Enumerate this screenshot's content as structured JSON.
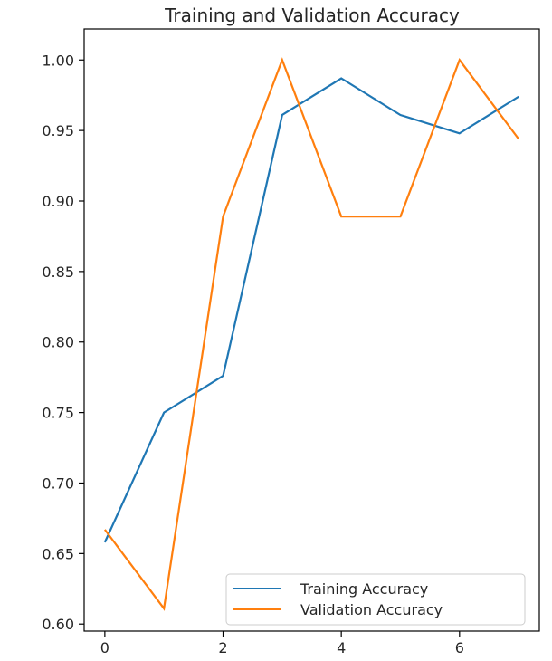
{
  "chart_data": {
    "type": "line",
    "title": "Training and Validation Accuracy",
    "xlabel": "",
    "ylabel": "",
    "x": [
      0,
      1,
      2,
      3,
      4,
      5,
      6,
      7
    ],
    "xlim": [
      -0.35,
      7.35
    ],
    "ylim": [
      0.595,
      1.022
    ],
    "xticks": [
      0,
      2,
      4,
      6
    ],
    "yticks": [
      0.6,
      0.65,
      0.7,
      0.75,
      0.8,
      0.85,
      0.9,
      0.95,
      1.0
    ],
    "xtick_labels": [
      "0",
      "2",
      "4",
      "6"
    ],
    "ytick_labels": [
      "0.60",
      "0.65",
      "0.70",
      "0.75",
      "0.80",
      "0.85",
      "0.90",
      "0.95",
      "1.00"
    ],
    "grid": false,
    "legend_position": "lower-right",
    "series": [
      {
        "name": "Training Accuracy",
        "color": "#1f77b4",
        "values": [
          0.658,
          0.75,
          0.776,
          0.961,
          0.987,
          0.961,
          0.948,
          0.974
        ]
      },
      {
        "name": "Validation Accuracy",
        "color": "#ff7f0e",
        "values": [
          0.667,
          0.611,
          0.889,
          1.0,
          0.889,
          0.889,
          1.0,
          0.944
        ]
      }
    ]
  }
}
